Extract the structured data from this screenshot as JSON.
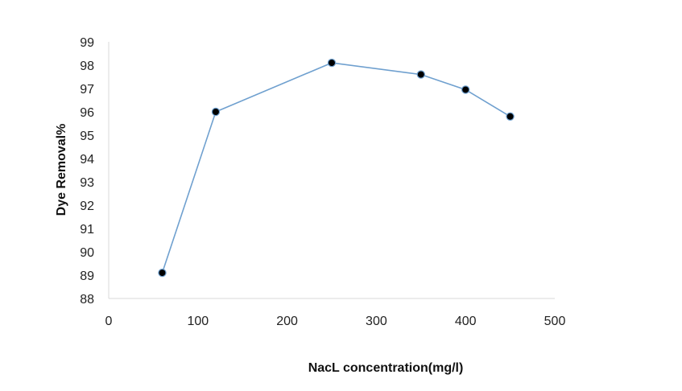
{
  "chart_data": {
    "type": "line",
    "title": "",
    "xlabel": "NacL concentration(mg/l)",
    "ylabel": "Dye  Removal%",
    "xlim": [
      0,
      500
    ],
    "ylim": [
      88,
      99
    ],
    "xticks": [
      0,
      100,
      200,
      300,
      400,
      500
    ],
    "yticks": [
      88,
      89,
      90,
      91,
      92,
      93,
      94,
      95,
      96,
      97,
      98,
      99
    ],
    "grid": false,
    "legend": "none",
    "series": [
      {
        "x": [
          60,
          120,
          250,
          350,
          400,
          450
        ],
        "y": [
          89.1,
          96.0,
          98.1,
          97.6,
          96.95,
          95.8
        ],
        "line_color": "#6fa0cf",
        "marker": "circle",
        "marker_color": "#000000"
      }
    ],
    "axis_color": "#d9d9d9"
  }
}
